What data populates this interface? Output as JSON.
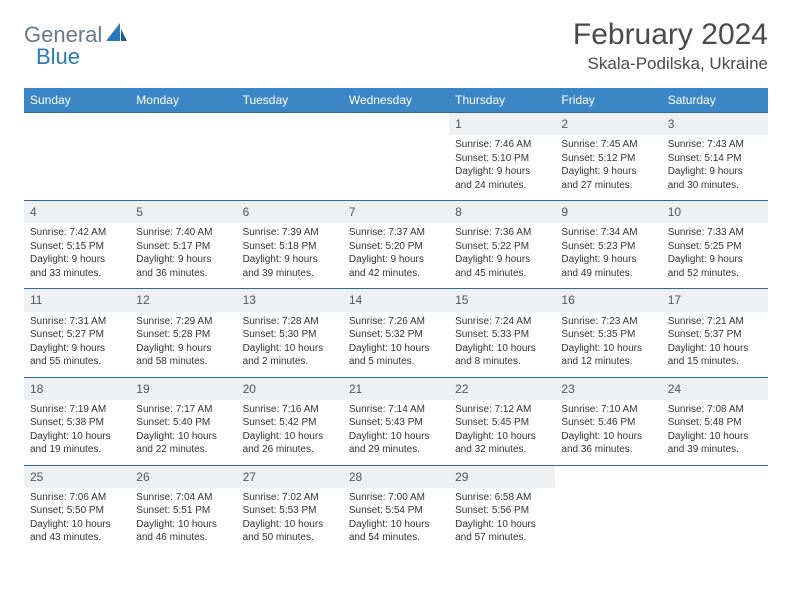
{
  "brand": {
    "part1": "General",
    "part2": "Blue"
  },
  "title": "February 2024",
  "location": "Skala-Podilska, Ukraine",
  "colors": {
    "header_bg": "#3b86c4",
    "header_text": "#ffffff",
    "row_border": "#2a6aa0",
    "daynum_bg": "#eef0f1",
    "text": "#333333",
    "brand_gray": "#6b7a87",
    "brand_blue": "#2a7ab9"
  },
  "dow": [
    "Sunday",
    "Monday",
    "Tuesday",
    "Wednesday",
    "Thursday",
    "Friday",
    "Saturday"
  ],
  "weeks": [
    [
      null,
      null,
      null,
      null,
      {
        "n": "1",
        "sr": "7:46 AM",
        "ss": "5:10 PM",
        "dl": "9 hours and 24 minutes."
      },
      {
        "n": "2",
        "sr": "7:45 AM",
        "ss": "5:12 PM",
        "dl": "9 hours and 27 minutes."
      },
      {
        "n": "3",
        "sr": "7:43 AM",
        "ss": "5:14 PM",
        "dl": "9 hours and 30 minutes."
      }
    ],
    [
      {
        "n": "4",
        "sr": "7:42 AM",
        "ss": "5:15 PM",
        "dl": "9 hours and 33 minutes."
      },
      {
        "n": "5",
        "sr": "7:40 AM",
        "ss": "5:17 PM",
        "dl": "9 hours and 36 minutes."
      },
      {
        "n": "6",
        "sr": "7:39 AM",
        "ss": "5:18 PM",
        "dl": "9 hours and 39 minutes."
      },
      {
        "n": "7",
        "sr": "7:37 AM",
        "ss": "5:20 PM",
        "dl": "9 hours and 42 minutes."
      },
      {
        "n": "8",
        "sr": "7:36 AM",
        "ss": "5:22 PM",
        "dl": "9 hours and 45 minutes."
      },
      {
        "n": "9",
        "sr": "7:34 AM",
        "ss": "5:23 PM",
        "dl": "9 hours and 49 minutes."
      },
      {
        "n": "10",
        "sr": "7:33 AM",
        "ss": "5:25 PM",
        "dl": "9 hours and 52 minutes."
      }
    ],
    [
      {
        "n": "11",
        "sr": "7:31 AM",
        "ss": "5:27 PM",
        "dl": "9 hours and 55 minutes."
      },
      {
        "n": "12",
        "sr": "7:29 AM",
        "ss": "5:28 PM",
        "dl": "9 hours and 58 minutes."
      },
      {
        "n": "13",
        "sr": "7:28 AM",
        "ss": "5:30 PM",
        "dl": "10 hours and 2 minutes."
      },
      {
        "n": "14",
        "sr": "7:26 AM",
        "ss": "5:32 PM",
        "dl": "10 hours and 5 minutes."
      },
      {
        "n": "15",
        "sr": "7:24 AM",
        "ss": "5:33 PM",
        "dl": "10 hours and 8 minutes."
      },
      {
        "n": "16",
        "sr": "7:23 AM",
        "ss": "5:35 PM",
        "dl": "10 hours and 12 minutes."
      },
      {
        "n": "17",
        "sr": "7:21 AM",
        "ss": "5:37 PM",
        "dl": "10 hours and 15 minutes."
      }
    ],
    [
      {
        "n": "18",
        "sr": "7:19 AM",
        "ss": "5:38 PM",
        "dl": "10 hours and 19 minutes."
      },
      {
        "n": "19",
        "sr": "7:17 AM",
        "ss": "5:40 PM",
        "dl": "10 hours and 22 minutes."
      },
      {
        "n": "20",
        "sr": "7:16 AM",
        "ss": "5:42 PM",
        "dl": "10 hours and 26 minutes."
      },
      {
        "n": "21",
        "sr": "7:14 AM",
        "ss": "5:43 PM",
        "dl": "10 hours and 29 minutes."
      },
      {
        "n": "22",
        "sr": "7:12 AM",
        "ss": "5:45 PM",
        "dl": "10 hours and 32 minutes."
      },
      {
        "n": "23",
        "sr": "7:10 AM",
        "ss": "5:46 PM",
        "dl": "10 hours and 36 minutes."
      },
      {
        "n": "24",
        "sr": "7:08 AM",
        "ss": "5:48 PM",
        "dl": "10 hours and 39 minutes."
      }
    ],
    [
      {
        "n": "25",
        "sr": "7:06 AM",
        "ss": "5:50 PM",
        "dl": "10 hours and 43 minutes."
      },
      {
        "n": "26",
        "sr": "7:04 AM",
        "ss": "5:51 PM",
        "dl": "10 hours and 46 minutes."
      },
      {
        "n": "27",
        "sr": "7:02 AM",
        "ss": "5:53 PM",
        "dl": "10 hours and 50 minutes."
      },
      {
        "n": "28",
        "sr": "7:00 AM",
        "ss": "5:54 PM",
        "dl": "10 hours and 54 minutes."
      },
      {
        "n": "29",
        "sr": "6:58 AM",
        "ss": "5:56 PM",
        "dl": "10 hours and 57 minutes."
      },
      null,
      null
    ]
  ],
  "labels": {
    "sunrise": "Sunrise:",
    "sunset": "Sunset:",
    "daylight": "Daylight:"
  }
}
